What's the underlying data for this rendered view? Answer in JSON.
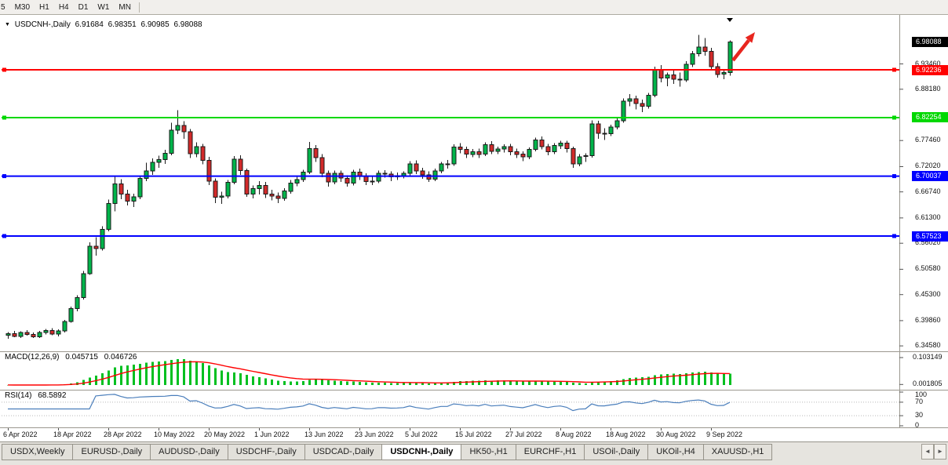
{
  "toolbar": {
    "timeframes": [
      "5",
      "M30",
      "H1",
      "H4",
      "D1",
      "W1",
      "MN"
    ]
  },
  "chart_title": {
    "collapse_icon": "▼",
    "symbol": "USDCNH-,Daily",
    "open": "6.91684",
    "high": "6.98351",
    "low": "6.90985",
    "close": "6.98088"
  },
  "price_axis": {
    "current_tag": {
      "label": "6.98088",
      "bg": "#000000"
    },
    "labels": [
      "6.93460",
      "6.88180",
      "6.77460",
      "6.72020",
      "6.66740",
      "6.61300",
      "6.56020",
      "6.50580",
      "6.45300",
      "6.39860",
      "6.34580"
    ]
  },
  "macd_panel": {
    "title": "MACD(12,26,9)",
    "main_value": "0.045715",
    "signal_value": "0.046726",
    "axis_labels": [
      "0.103149",
      "0.001805"
    ],
    "params": [
      12,
      26,
      9
    ]
  },
  "rsi_panel": {
    "title": "RSI(14)",
    "value": "68.5892",
    "axis_labels": [
      "100",
      "70",
      "30",
      "0"
    ],
    "levels": [
      70,
      30
    ],
    "params": [
      14
    ]
  },
  "tabs": {
    "active_index": 5,
    "items": [
      "USDX,Weekly",
      "EURUSD-,Daily",
      "AUDUSD-,Daily",
      "USDCHF-,Daily",
      "USDCAD-,Daily",
      "USDCNH-,Daily",
      "HK50-,H1",
      "EURCHF-,H1",
      "USOil-,Daily",
      "UKOil-,H4",
      "XAUUSD-,H1"
    ]
  },
  "colors": {
    "bull": "#00b44a",
    "bear": "#d22a2a",
    "wick": "#1a1a1a",
    "macd_hist": "#00c020",
    "macd_signal": "#ff0000",
    "rsi_line": "#4a7ebb",
    "arrow": "#e8261f",
    "tag_current_bg": "#000000"
  },
  "chart_data": {
    "type": "candlestick",
    "symbol": "USDCNH-,Daily",
    "visible_price_range": [
      6.3411,
      7.0288
    ],
    "last_ohlc": [
      6.91684,
      6.98351,
      6.90985,
      6.98088
    ],
    "hlines": [
      {
        "price": "6.92236",
        "color": "#ff0000"
      },
      {
        "price": "6.82254",
        "color": "#00d800"
      },
      {
        "price": "6.70037",
        "color": "#0000ff"
      },
      {
        "price": "6.57523",
        "color": "#0000ff"
      }
    ],
    "x_ticks": [
      {
        "index": 0,
        "label": "6 Apr 2022"
      },
      {
        "index": 8,
        "label": "18 Apr 2022"
      },
      {
        "index": 16,
        "label": "28 Apr 2022"
      },
      {
        "index": 24,
        "label": "10 May 2022"
      },
      {
        "index": 32,
        "label": "20 May 2022"
      },
      {
        "index": 40,
        "label": "1 Jun 2022"
      },
      {
        "index": 48,
        "label": "13 Jun 2022"
      },
      {
        "index": 56,
        "label": "23 Jun 2022"
      },
      {
        "index": 64,
        "label": "5 Jul 2022"
      },
      {
        "index": 72,
        "label": "15 Jul 2022"
      },
      {
        "index": 80,
        "label": "27 Jul 2022"
      },
      {
        "index": 88,
        "label": "8 Aug 2022"
      },
      {
        "index": 96,
        "label": "18 Aug 2022"
      },
      {
        "index": 104,
        "label": "30 Aug 2022"
      },
      {
        "index": 112,
        "label": "9 Sep 2022"
      }
    ],
    "candles": [
      [
        6.368,
        6.375,
        6.361,
        6.371
      ],
      [
        6.371,
        6.377,
        6.364,
        6.366
      ],
      [
        6.366,
        6.376,
        6.362,
        6.374
      ],
      [
        6.374,
        6.379,
        6.367,
        6.37
      ],
      [
        6.37,
        6.374,
        6.362,
        6.365
      ],
      [
        6.365,
        6.377,
        6.362,
        6.374
      ],
      [
        6.374,
        6.381,
        6.37,
        6.378
      ],
      [
        6.378,
        6.383,
        6.368,
        6.371
      ],
      [
        6.371,
        6.38,
        6.366,
        6.377
      ],
      [
        6.377,
        6.4,
        6.374,
        6.397
      ],
      [
        6.397,
        6.428,
        6.394,
        6.424
      ],
      [
        6.424,
        6.452,
        6.418,
        6.447
      ],
      [
        6.447,
        6.502,
        6.443,
        6.497
      ],
      [
        6.497,
        6.562,
        6.494,
        6.554
      ],
      [
        6.554,
        6.573,
        6.534,
        6.549
      ],
      [
        6.549,
        6.596,
        6.545,
        6.589
      ],
      [
        6.589,
        6.651,
        6.585,
        6.643
      ],
      [
        6.643,
        6.7,
        6.627,
        6.684
      ],
      [
        6.684,
        6.694,
        6.652,
        6.663
      ],
      [
        6.663,
        6.672,
        6.639,
        6.648
      ],
      [
        6.648,
        6.664,
        6.636,
        6.657
      ],
      [
        6.657,
        6.701,
        6.652,
        6.696
      ],
      [
        6.696,
        6.728,
        6.69,
        6.711
      ],
      [
        6.711,
        6.737,
        6.703,
        6.729
      ],
      [
        6.729,
        6.743,
        6.718,
        6.735
      ],
      [
        6.735,
        6.755,
        6.726,
        6.748
      ],
      [
        6.748,
        6.812,
        6.744,
        6.796
      ],
      [
        6.796,
        6.838,
        6.788,
        6.806
      ],
      [
        6.806,
        6.815,
        6.778,
        6.793
      ],
      [
        6.793,
        6.799,
        6.738,
        6.747
      ],
      [
        6.747,
        6.771,
        6.74,
        6.762
      ],
      [
        6.762,
        6.768,
        6.725,
        6.733
      ],
      [
        6.733,
        6.741,
        6.682,
        6.69
      ],
      [
        6.69,
        6.696,
        6.644,
        6.656
      ],
      [
        6.656,
        6.668,
        6.642,
        6.659
      ],
      [
        6.659,
        6.692,
        6.654,
        6.687
      ],
      [
        6.687,
        6.742,
        6.683,
        6.736
      ],
      [
        6.736,
        6.744,
        6.703,
        6.712
      ],
      [
        6.712,
        6.716,
        6.657,
        6.663
      ],
      [
        6.663,
        6.681,
        6.654,
        6.674
      ],
      [
        6.674,
        6.69,
        6.662,
        6.681
      ],
      [
        6.681,
        6.688,
        6.655,
        6.663
      ],
      [
        6.663,
        6.672,
        6.65,
        6.659
      ],
      [
        6.659,
        6.666,
        6.644,
        6.654
      ],
      [
        6.654,
        6.675,
        6.649,
        6.669
      ],
      [
        6.669,
        6.692,
        6.664,
        6.686
      ],
      [
        6.686,
        6.699,
        6.679,
        6.693
      ],
      [
        6.693,
        6.714,
        6.688,
        6.709
      ],
      [
        6.709,
        6.772,
        6.705,
        6.758
      ],
      [
        6.758,
        6.765,
        6.73,
        6.739
      ],
      [
        6.739,
        6.746,
        6.698,
        6.706
      ],
      [
        6.706,
        6.712,
        6.678,
        6.688
      ],
      [
        6.688,
        6.712,
        6.683,
        6.706
      ],
      [
        6.706,
        6.712,
        6.688,
        6.696
      ],
      [
        6.696,
        6.702,
        6.678,
        6.686
      ],
      [
        6.686,
        6.714,
        6.681,
        6.709
      ],
      [
        6.709,
        6.716,
        6.692,
        6.7
      ],
      [
        6.7,
        6.706,
        6.682,
        6.689
      ],
      [
        6.689,
        6.7,
        6.682,
        6.69
      ],
      [
        6.69,
        6.712,
        6.686,
        6.706
      ],
      [
        6.706,
        6.713,
        6.697,
        6.705
      ],
      [
        6.705,
        6.71,
        6.69,
        6.699
      ],
      [
        6.699,
        6.708,
        6.692,
        6.701
      ],
      [
        6.701,
        6.71,
        6.696,
        6.706
      ],
      [
        6.706,
        6.732,
        6.701,
        6.726
      ],
      [
        6.726,
        6.733,
        6.705,
        6.711
      ],
      [
        6.711,
        6.718,
        6.695,
        6.703
      ],
      [
        6.703,
        6.71,
        6.688,
        6.694
      ],
      [
        6.694,
        6.716,
        6.69,
        6.711
      ],
      [
        6.711,
        6.73,
        6.706,
        6.726
      ],
      [
        6.726,
        6.734,
        6.716,
        6.726
      ],
      [
        6.726,
        6.767,
        6.722,
        6.761
      ],
      [
        6.761,
        6.769,
        6.748,
        6.756
      ],
      [
        6.756,
        6.762,
        6.738,
        6.746
      ],
      [
        6.746,
        6.757,
        6.74,
        6.751
      ],
      [
        6.751,
        6.758,
        6.738,
        6.746
      ],
      [
        6.746,
        6.771,
        6.742,
        6.766
      ],
      [
        6.766,
        6.773,
        6.746,
        6.752
      ],
      [
        6.752,
        6.762,
        6.746,
        6.757
      ],
      [
        6.757,
        6.767,
        6.75,
        6.762
      ],
      [
        6.762,
        6.768,
        6.744,
        6.751
      ],
      [
        6.751,
        6.758,
        6.738,
        6.746
      ],
      [
        6.746,
        6.752,
        6.732,
        6.741
      ],
      [
        6.741,
        6.76,
        6.736,
        6.756
      ],
      [
        6.756,
        6.781,
        6.752,
        6.776
      ],
      [
        6.776,
        6.783,
        6.756,
        6.762
      ],
      [
        6.762,
        6.768,
        6.744,
        6.751
      ],
      [
        6.751,
        6.769,
        6.746,
        6.764
      ],
      [
        6.764,
        6.774,
        6.757,
        6.769
      ],
      [
        6.769,
        6.774,
        6.75,
        6.758
      ],
      [
        6.758,
        6.762,
        6.718,
        6.726
      ],
      [
        6.726,
        6.746,
        6.721,
        6.741
      ],
      [
        6.741,
        6.748,
        6.73,
        6.743
      ],
      [
        6.743,
        6.817,
        6.739,
        6.809
      ],
      [
        6.809,
        6.816,
        6.778,
        6.79
      ],
      [
        6.79,
        6.8,
        6.776,
        6.789
      ],
      [
        6.789,
        6.808,
        6.784,
        6.803
      ],
      [
        6.803,
        6.823,
        6.798,
        6.816
      ],
      [
        6.816,
        6.863,
        6.812,
        6.857
      ],
      [
        6.857,
        6.872,
        6.846,
        6.862
      ],
      [
        6.862,
        6.868,
        6.84,
        6.852
      ],
      [
        6.852,
        6.86,
        6.834,
        6.846
      ],
      [
        6.846,
        6.874,
        6.841,
        6.869
      ],
      [
        6.869,
        6.929,
        6.865,
        6.922
      ],
      [
        6.922,
        6.932,
        6.896,
        6.905
      ],
      [
        6.905,
        6.917,
        6.888,
        6.912
      ],
      [
        6.912,
        6.921,
        6.893,
        6.903
      ],
      [
        6.903,
        6.917,
        6.887,
        6.901
      ],
      [
        6.901,
        6.94,
        6.897,
        6.934
      ],
      [
        6.934,
        6.962,
        6.928,
        6.956
      ],
      [
        6.956,
        6.995,
        6.95,
        6.97
      ],
      [
        6.97,
        6.989,
        6.952,
        6.961
      ],
      [
        6.961,
        6.968,
        6.922,
        6.929
      ],
      [
        6.929,
        6.936,
        6.906,
        6.913
      ],
      [
        6.913,
        6.924,
        6.903,
        6.917
      ],
      [
        6.91684,
        6.98351,
        6.90985,
        6.98088
      ]
    ]
  }
}
